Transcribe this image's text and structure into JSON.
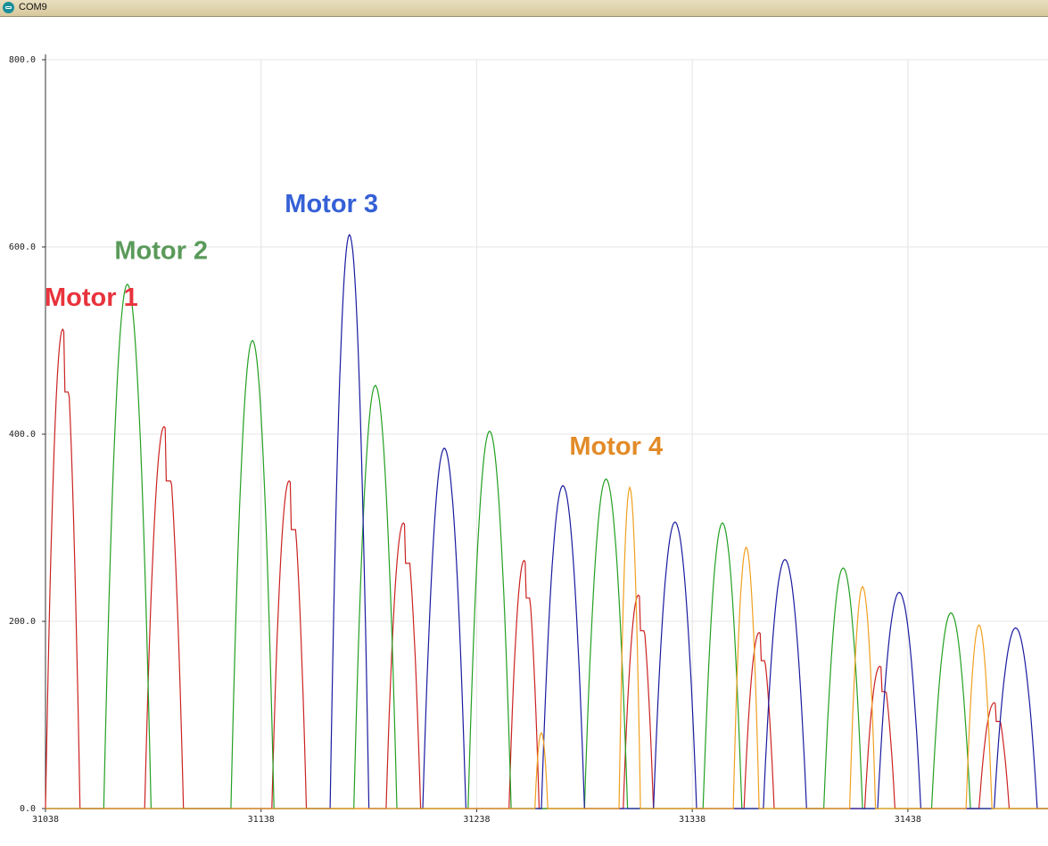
{
  "window": {
    "title": "COM9"
  },
  "chart_data": {
    "type": "line",
    "xlim": [
      31038,
      31503
    ],
    "ylim": [
      0,
      800
    ],
    "x_ticks": [
      "31038",
      "31138",
      "31238",
      "31338",
      "31438"
    ],
    "x_tick_values": [
      31038,
      31138,
      31238,
      31338,
      31438
    ],
    "y_ticks": [
      "0.0",
      "200.0",
      "400.0",
      "600.0",
      "800.0"
    ],
    "y_tick_values": [
      0,
      200,
      400,
      600,
      800
    ],
    "grid": true,
    "annotations": [
      {
        "text": "Motor 1",
        "color": "#e8333c",
        "x": 31038,
        "y": 537
      },
      {
        "text": "Motor 2",
        "color": "#5a9a5a",
        "x": 31070,
        "y": 587
      },
      {
        "text": "Motor 3",
        "color": "#3560d6",
        "x": 31149,
        "y": 637
      },
      {
        "text": "Motor  4",
        "color": "#e28b28",
        "x": 31281,
        "y": 378
      }
    ],
    "series": [
      {
        "color": "#cc2222",
        "peaks": [
          {
            "center": 31046,
            "width": 8,
            "height": 512,
            "shoulder": 445
          },
          {
            "center": 31093,
            "width": 9,
            "height": 408,
            "shoulder": 350
          },
          {
            "center": 31151,
            "width": 8,
            "height": 350,
            "shoulder": 298
          },
          {
            "center": 31204,
            "width": 8,
            "height": 305,
            "shoulder": 262
          },
          {
            "center": 31260,
            "width": 7,
            "height": 265,
            "shoulder": 225
          },
          {
            "center": 31313,
            "width": 7,
            "height": 228,
            "shoulder": 190
          },
          {
            "center": 31369,
            "width": 7,
            "height": 188,
            "shoulder": 158
          },
          {
            "center": 31425,
            "width": 7,
            "height": 152,
            "shoulder": 125
          },
          {
            "center": 31478,
            "width": 7,
            "height": 113,
            "shoulder": 93
          }
        ]
      },
      {
        "color": "#22a022",
        "peaks": [
          {
            "center": 31076,
            "width": 11,
            "height": 560
          },
          {
            "center": 31134,
            "width": 10,
            "height": 500
          },
          {
            "center": 31191,
            "width": 10,
            "height": 452
          },
          {
            "center": 31244,
            "width": 10,
            "height": 403
          },
          {
            "center": 31298,
            "width": 10,
            "height": 352
          },
          {
            "center": 31352,
            "width": 9,
            "height": 305
          },
          {
            "center": 31408,
            "width": 9,
            "height": 257
          },
          {
            "center": 31458,
            "width": 9,
            "height": 209
          }
        ]
      },
      {
        "color": "#1a1aa0",
        "peaks": [
          {
            "center": 31179,
            "width": 9,
            "height": 613
          },
          {
            "center": 31223,
            "width": 10,
            "height": 385
          },
          {
            "center": 31278,
            "width": 10,
            "height": 345
          },
          {
            "center": 31330,
            "width": 10,
            "height": 306
          },
          {
            "center": 31381,
            "width": 10,
            "height": 266
          },
          {
            "center": 31434,
            "width": 10,
            "height": 231
          },
          {
            "center": 31488,
            "width": 10,
            "height": 193
          }
        ]
      },
      {
        "color": "#f0a020",
        "peaks": [
          {
            "center": 31268,
            "width": 3,
            "height": 81
          },
          {
            "center": 31309,
            "width": 5,
            "height": 343
          },
          {
            "center": 31363,
            "width": 6,
            "height": 279
          },
          {
            "center": 31417,
            "width": 6,
            "height": 237
          },
          {
            "center": 31471,
            "width": 6,
            "height": 196
          }
        ]
      }
    ]
  }
}
